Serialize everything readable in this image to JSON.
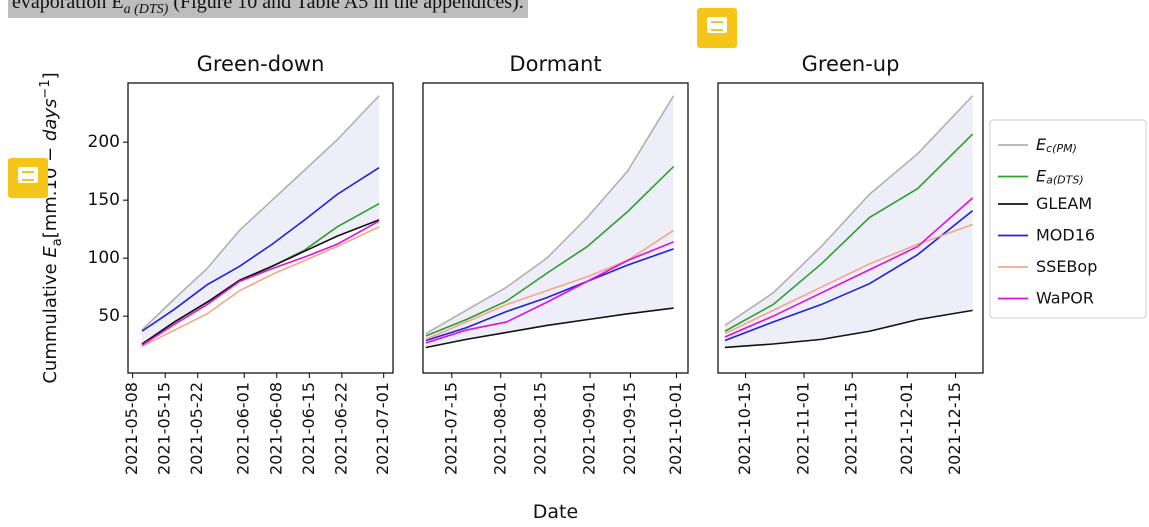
{
  "document": {
    "line": "evaporation E",
    "line_sub": "a (DTS)",
    "line_rest": " (Figure 10 and Table A5 in the appendices)."
  },
  "chart_data": [
    {
      "type": "line",
      "title": "Green-down",
      "y_label": [
        "Cummulative ",
        "E",
        "a",
        "[mm.10 − ",
        "days",
        "−1",
        "]"
      ],
      "x": [
        "2021-05-10",
        "2021-05-17",
        "2021-05-24",
        "2021-05-31",
        "2021-06-07",
        "2021-06-14",
        "2021-06-21",
        "2021-06-30"
      ],
      "xlim": [
        "2021-05-07",
        "2021-07-03"
      ],
      "xticks": [
        "2021-05-08",
        "2021-05-15",
        "2021-05-22",
        "2021-06-01",
        "2021-06-08",
        "2021-06-15",
        "2021-06-22",
        "2021-07-01"
      ],
      "ylim": [
        1,
        251
      ],
      "yticks": [
        50,
        100,
        150,
        200
      ],
      "fill_between": [
        0,
        2
      ],
      "fill_color": "#eeeef8",
      "series": [
        {
          "name": "E",
          "name_sub": "c(PM)",
          "color": "#b0b0b0",
          "values": [
            38,
            65,
            91,
            124,
            150,
            176,
            202,
            240
          ]
        },
        {
          "name": "E",
          "name_sub": "a(DTS)",
          "color": "#2ca02c",
          "values": [
            26,
            45,
            62,
            80,
            93,
            107,
            127,
            147
          ]
        },
        {
          "name": "GLEAM",
          "color": "#111111",
          "values": [
            26,
            45,
            62,
            81,
            93,
            106,
            119,
            133
          ]
        },
        {
          "name": "MOD16",
          "color": "#2020e0",
          "values": [
            37,
            56,
            77,
            93,
            112,
            133,
            155,
            178
          ]
        },
        {
          "name": "SSEBop",
          "color": "#f4a58a",
          "values": [
            24,
            38,
            52,
            72,
            86,
            98,
            110,
            127
          ]
        },
        {
          "name": "WaPOR",
          "color": "#e010e0",
          "values": [
            25,
            43,
            60,
            80,
            91,
            101,
            112,
            132
          ]
        }
      ]
    },
    {
      "type": "line",
      "title": "Dormant",
      "x_label": "Date",
      "x": [
        "2021-07-06",
        "2021-07-20",
        "2021-08-03",
        "2021-08-17",
        "2021-08-31",
        "2021-09-14",
        "2021-09-30"
      ],
      "xlim": [
        "2021-07-05",
        "2021-10-05"
      ],
      "xticks": [
        "2021-07-15",
        "2021-08-01",
        "2021-08-15",
        "2021-09-01",
        "2021-09-15",
        "2021-10-01"
      ],
      "ylim": [
        1,
        251
      ],
      "fill_between": [
        0,
        2
      ],
      "fill_color": "#eeeef8",
      "series": [
        {
          "color": "#b0b0b0",
          "values": [
            35,
            55,
            75,
            100,
            135,
            175,
            240
          ]
        },
        {
          "color": "#2ca02c",
          "values": [
            33,
            47,
            63,
            87,
            110,
            140,
            179
          ]
        },
        {
          "color": "#111111",
          "values": [
            23,
            30,
            36,
            42,
            47,
            52,
            57
          ]
        },
        {
          "color": "#2020e0",
          "values": [
            29,
            40,
            54,
            66,
            80,
            94,
            108
          ]
        },
        {
          "color": "#f4a58a",
          "values": [
            30,
            45,
            60,
            72,
            84,
            98,
            124
          ]
        },
        {
          "color": "#e010e0",
          "values": [
            27,
            38,
            45,
            62,
            80,
            98,
            114
          ]
        }
      ]
    },
    {
      "type": "line",
      "title": "Green-up",
      "x": [
        "2021-10-09",
        "2021-10-23",
        "2021-11-06",
        "2021-11-20",
        "2021-12-04",
        "2021-12-20"
      ],
      "xlim": [
        "2021-10-07",
        "2021-12-23"
      ],
      "xticks": [
        "2021-10-15",
        "2021-11-01",
        "2021-11-15",
        "2021-12-01",
        "2021-12-15"
      ],
      "ylim": [
        1,
        251
      ],
      "fill_between": [
        0,
        2
      ],
      "fill_color": "#eeeef8",
      "series": [
        {
          "color": "#b0b0b0",
          "values": [
            42,
            70,
            110,
            155,
            190,
            240
          ]
        },
        {
          "color": "#2ca02c",
          "values": [
            37,
            60,
            95,
            135,
            160,
            207
          ]
        },
        {
          "color": "#111111",
          "values": [
            23,
            26,
            30,
            37,
            47,
            55
          ]
        },
        {
          "color": "#2020e0",
          "values": [
            29,
            45,
            60,
            78,
            103,
            141
          ]
        },
        {
          "color": "#f4a58a",
          "values": [
            35,
            55,
            75,
            95,
            112,
            129
          ]
        },
        {
          "color": "#e010e0",
          "values": [
            32,
            50,
            70,
            90,
            110,
            152
          ]
        }
      ]
    }
  ]
}
